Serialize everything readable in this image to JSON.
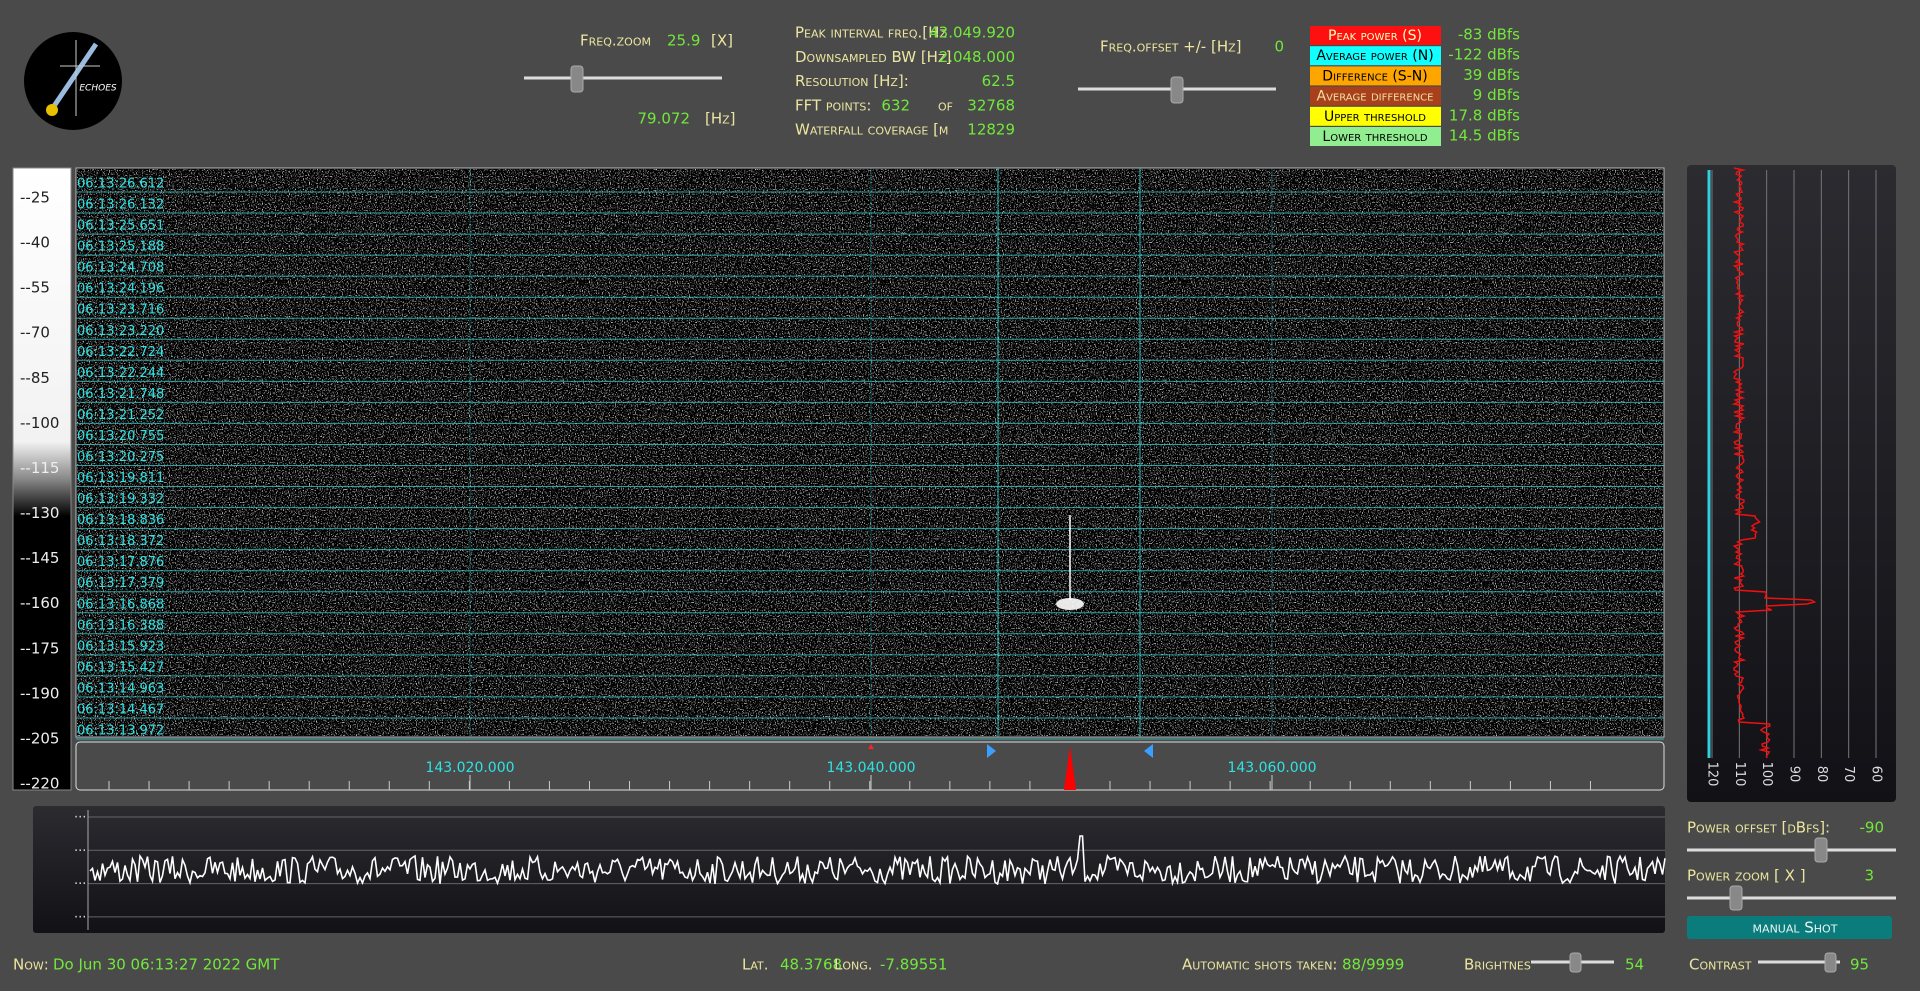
{
  "logo_text": "ECHOES",
  "freq_zoom": {
    "label": "Freq.zoom",
    "value": "25.9",
    "unit": "[X]",
    "span": "79.072",
    "span_unit": "[Hz]"
  },
  "info": [
    {
      "label": "Peak interval freq.[Hz",
      "value": "43.049.920"
    },
    {
      "label": "Downsampled BW  [Hz]",
      "value": "2.048.000"
    },
    {
      "label": "Resolution [Hz]:",
      "value": "62.5"
    },
    {
      "label": "FFT points:",
      "value": "632",
      "of": "of",
      "total": "32768"
    },
    {
      "label": "Waterfall coverage [m",
      "value": "12829"
    }
  ],
  "freq_offset": {
    "label": "Freq.offset +/- [Hz]",
    "value": "0"
  },
  "legend": [
    {
      "label": "Peak power (S)",
      "value": "-83 dBfs"
    },
    {
      "label": "Average power (N)",
      "value": "-122 dBfs"
    },
    {
      "label": "Difference (S-N)",
      "value": "39 dBfs"
    },
    {
      "label": "Average difference",
      "value": "9 dBfs"
    },
    {
      "label": "Upper threshold",
      "value": "17.8 dBfs"
    },
    {
      "label": "Lower threshold",
      "value": "14.5 dBfs"
    }
  ],
  "waterfall": {
    "scale": [
      "--25",
      "--40",
      "--55",
      "--70",
      "--85",
      "--100",
      "--115",
      "--130",
      "--145",
      "--160",
      "--175",
      "--190",
      "--205",
      "--220"
    ],
    "timestamps": [
      "06:13:26.612",
      "06:13:26.132",
      "06:13:25.651",
      "06:13:25.188",
      "06:13:24.708",
      "06:13:24.196",
      "06:13:23.716",
      "06:13:23.220",
      "06:13:22.724",
      "06:13:22.244",
      "06:13:21.748",
      "06:13:21.252",
      "06:13:20.755",
      "06:13:20.275",
      "06:13:19.811",
      "06:13:19.332",
      "06:13:18.836",
      "06:13:18.372",
      "06:13:17.876",
      "06:13:17.379",
      "06:13:16.868",
      "06:13:16.388",
      "06:13:15.923",
      "06:13:15.427",
      "06:13:14.963",
      "06:13:14.467",
      "06:13:13.972"
    ],
    "freq_ticks": [
      "143.020.000",
      "143.040.000",
      "143.060.000"
    ]
  },
  "power_panel": {
    "ticks": [
      "120",
      "110",
      "100",
      "90",
      "80",
      "70",
      "60"
    ]
  },
  "spectrum": {
    "row_labels": [
      "...",
      "...",
      "...",
      "..."
    ]
  },
  "controls": {
    "power_offset": {
      "label": "Power offset [dBfs]:",
      "value": "-90"
    },
    "power_zoom": {
      "label": "Power zoom  [ X ]",
      "value": "3"
    },
    "button": "manual Shot"
  },
  "status": {
    "now_label": "Now:",
    "now": "Do Jun 30 06:13:27 2022 GMT",
    "lat_label": "Lat.",
    "lat": "48.3768",
    "long_label": "Long.",
    "long": "-7.89551",
    "shots_label": "Automatic shots taken:",
    "shots": "88/9999",
    "brightness_label": "Brightnes",
    "brightness": "54",
    "contrast_label": "Contrast",
    "contrast": "95"
  }
}
